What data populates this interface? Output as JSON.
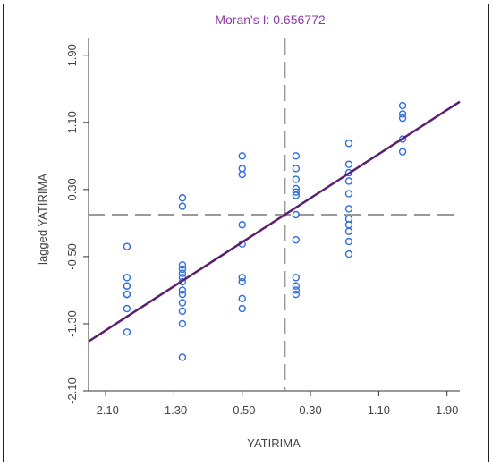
{
  "chart_data": {
    "type": "scatter",
    "title": "Moran's I: 0.656772",
    "xlabel": "YATIRIMA",
    "ylabel": "lagged YATIRIMA",
    "xlim": [
      -2.3,
      2.05
    ],
    "ylim": [
      -2.1,
      2.1
    ],
    "x_ticks": [
      "-2.10",
      "-1.30",
      "-0.50",
      "0.30",
      "1.10",
      "1.90"
    ],
    "y_ticks": [
      "-2.10",
      "-1.30",
      "-0.50",
      "0.30",
      "1.10",
      "1.90"
    ],
    "grid": false,
    "vline_x": 0.0,
    "hline_y": 0.0,
    "regression": {
      "slope": 0.657,
      "intercept": 0.0
    },
    "colors": {
      "points": "#2f6de0",
      "line": "#5a1f6e",
      "dashed": "#999999",
      "title": "#8e3aa8"
    },
    "points": [
      [
        -1.85,
        -0.38
      ],
      [
        -1.85,
        -0.75
      ],
      [
        -1.85,
        -0.85
      ],
      [
        -1.85,
        -0.95
      ],
      [
        -1.85,
        -1.12
      ],
      [
        -1.85,
        -1.4
      ],
      [
        -1.85,
        -0.85
      ],
      [
        -1.85,
        -0.95
      ],
      [
        -1.2,
        0.2
      ],
      [
        -1.2,
        0.1
      ],
      [
        -1.2,
        -0.6
      ],
      [
        -1.2,
        -0.65
      ],
      [
        -1.2,
        -0.7
      ],
      [
        -1.2,
        -0.75
      ],
      [
        -1.2,
        -0.8
      ],
      [
        -1.2,
        -0.9
      ],
      [
        -1.2,
        -0.95
      ],
      [
        -1.2,
        -1.05
      ],
      [
        -1.2,
        -1.15
      ],
      [
        -1.2,
        -1.3
      ],
      [
        -1.2,
        -1.7
      ],
      [
        -0.5,
        0.7
      ],
      [
        -0.5,
        0.55
      ],
      [
        -0.5,
        0.48
      ],
      [
        -0.5,
        -0.12
      ],
      [
        -0.5,
        -0.35
      ],
      [
        -0.5,
        -0.75
      ],
      [
        -0.5,
        -0.8
      ],
      [
        -0.5,
        -1.0
      ],
      [
        -0.5,
        -1.12
      ],
      [
        0.13,
        0.7
      ],
      [
        0.13,
        0.55
      ],
      [
        0.13,
        0.42
      ],
      [
        0.13,
        0.31
      ],
      [
        0.13,
        0.27
      ],
      [
        0.13,
        0.23
      ],
      [
        0.13,
        0.0
      ],
      [
        0.13,
        -0.3
      ],
      [
        0.13,
        -0.75
      ],
      [
        0.13,
        -0.85
      ],
      [
        0.13,
        -0.9
      ],
      [
        0.13,
        -0.95
      ],
      [
        0.75,
        0.85
      ],
      [
        0.75,
        0.6
      ],
      [
        0.75,
        0.5
      ],
      [
        0.75,
        0.4
      ],
      [
        0.75,
        0.25
      ],
      [
        0.75,
        0.07
      ],
      [
        0.75,
        -0.05
      ],
      [
        0.75,
        -0.12
      ],
      [
        0.75,
        -0.2
      ],
      [
        0.75,
        -0.32
      ],
      [
        0.75,
        -0.47
      ],
      [
        1.38,
        1.3
      ],
      [
        1.38,
        1.2
      ],
      [
        1.38,
        1.15
      ],
      [
        1.38,
        0.9
      ],
      [
        1.38,
        0.75
      ]
    ]
  }
}
